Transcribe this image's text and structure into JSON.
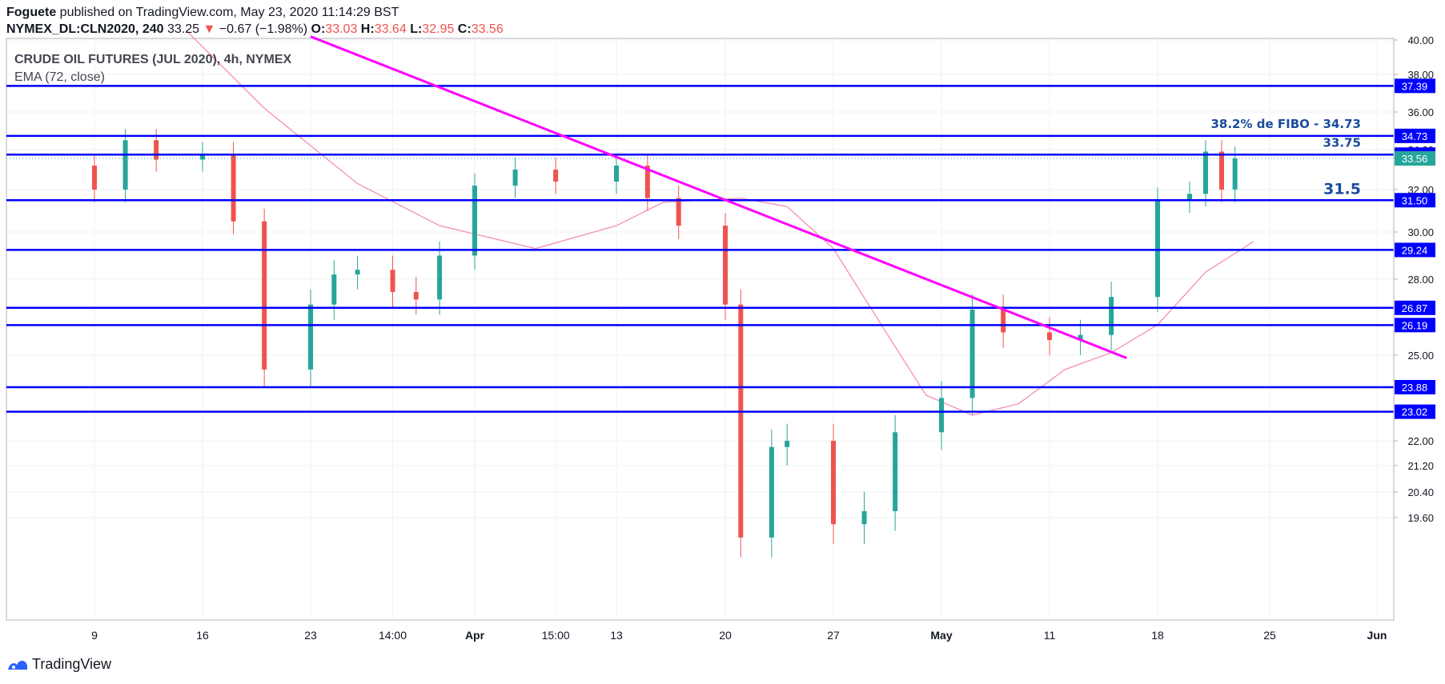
{
  "header": {
    "author": "Foguete",
    "published_text": "published on TradingView.com, May 23, 2020 11:14:29 BST",
    "symbol": "NYMEX_DL:CLN2020, 240",
    "last": "33.25",
    "change_arrow": "▼",
    "change": "−0.67 (−1.98%)",
    "o_label": "O:",
    "o_value": "33.03",
    "h_label": "H:",
    "h_value": "33.64",
    "l_label": "L:",
    "l_value": "32.95",
    "c_label": "C:",
    "c_value": "33.56"
  },
  "legend": {
    "title": "CRUDE OIL FUTURES (JUL 2020), 4h, NYMEX",
    "indicator": "EMA (72, close)"
  },
  "footer": {
    "brand": "TradingView"
  },
  "colors": {
    "level_line": "#0000ff",
    "trend_line": "#ff00ff",
    "ema_line": "#f48fb1",
    "up_candle": "#26a69a",
    "down_candle": "#ef5350",
    "price_badge": "#26a69a",
    "annotation": "#1a4b9c"
  },
  "chart_data": {
    "type": "candlestick",
    "title": "CRUDE OIL FUTURES (JUL 2020), 4h, NYMEX",
    "y_axis": {
      "ticks": [
        "40.00",
        "38.00",
        "36.00",
        "34.00",
        "32.00",
        "30.00",
        "28.00",
        "25.00",
        "22.00",
        "21.20",
        "20.40",
        "19.60"
      ],
      "tick_values": [
        40.0,
        38.0,
        36.0,
        34.0,
        32.0,
        30.0,
        28.0,
        25.0,
        22.0,
        21.2,
        20.4,
        19.6
      ]
    },
    "x_axis": {
      "labels": [
        "9",
        "16",
        "23",
        "14:00",
        "Apr",
        "15:00",
        "13",
        "20",
        "27",
        "May",
        "11",
        "18",
        "25",
        "Jun"
      ]
    },
    "horizontal_levels": [
      {
        "label": "37.39",
        "value": 37.39
      },
      {
        "label": "34.73",
        "value": 34.73
      },
      {
        "label": "33.75",
        "value": 33.75
      },
      {
        "label": "31.50",
        "value": 31.5
      },
      {
        "label": "29.24",
        "value": 29.24
      },
      {
        "label": "26.87",
        "value": 26.87
      },
      {
        "label": "26.19",
        "value": 26.19
      },
      {
        "label": "23.88",
        "value": 23.88
      },
      {
        "label": "23.02",
        "value": 23.02
      }
    ],
    "last_price": {
      "label": "33.56",
      "value": 33.56
    },
    "annotations": [
      {
        "text": "38.2% de FIBO - 34.73",
        "value": 34.73
      },
      {
        "text": "33.75",
        "value": 33.75
      },
      {
        "text": "31.5",
        "value": 31.5
      }
    ],
    "trendline": {
      "start": {
        "date": "Mar 23",
        "price": 40.2
      },
      "end": {
        "date": "May 16",
        "price": 24.9
      }
    },
    "ema_72": [
      {
        "date": "Mar 15",
        "price": 40.5
      },
      {
        "date": "Mar 20",
        "price": 36.2
      },
      {
        "date": "Mar 27",
        "price": 32.3
      },
      {
        "date": "Apr 3",
        "price": 30.3
      },
      {
        "date": "Apr 9",
        "price": 29.3
      },
      {
        "date": "Apr 13",
        "price": 30.3
      },
      {
        "date": "Apr 16",
        "price": 31.4
      },
      {
        "date": "Apr 21",
        "price": 31.6
      },
      {
        "date": "Apr 24",
        "price": 31.2
      },
      {
        "date": "Apr 27",
        "price": 29.3
      },
      {
        "date": "Apr 30",
        "price": 26.3
      },
      {
        "date": "May 3",
        "price": 23.6
      },
      {
        "date": "May 6",
        "price": 22.9
      },
      {
        "date": "May 9",
        "price": 23.3
      },
      {
        "date": "May 12",
        "price": 24.5
      },
      {
        "date": "May 15",
        "price": 25.1
      },
      {
        "date": "May 18",
        "price": 26.2
      },
      {
        "date": "May 21",
        "price": 28.3
      },
      {
        "date": "May 24",
        "price": 29.6
      }
    ],
    "candles_close": [
      {
        "date": "Mar 9",
        "close": 32.0
      },
      {
        "date": "Mar 11",
        "close": 34.5
      },
      {
        "date": "Mar 13",
        "close": 33.5
      },
      {
        "date": "Mar 16",
        "close": 33.8
      },
      {
        "date": "Mar 18",
        "close": 30.5
      },
      {
        "date": "Mar 20",
        "close": 24.5
      },
      {
        "date": "Mar 23",
        "close": 27.0
      },
      {
        "date": "Mar 25",
        "close": 28.2
      },
      {
        "date": "Mar 27",
        "close": 28.4
      },
      {
        "date": "Mar 30",
        "close": 27.5
      },
      {
        "date": "Apr 1",
        "close": 27.2
      },
      {
        "date": "Apr 3",
        "close": 29.0
      },
      {
        "date": "Apr 6",
        "close": 32.2
      },
      {
        "date": "Apr 8",
        "close": 33.0
      },
      {
        "date": "Apr 10",
        "close": 32.4
      },
      {
        "date": "Apr 13",
        "close": 33.2
      },
      {
        "date": "Apr 15",
        "close": 31.6
      },
      {
        "date": "Apr 17",
        "close": 30.3
      },
      {
        "date": "Apr 20",
        "close": 27.0
      },
      {
        "date": "Apr 21",
        "close": 19.0
      },
      {
        "date": "Apr 23",
        "close": 21.8
      },
      {
        "date": "Apr 24",
        "close": 22.0
      },
      {
        "date": "Apr 27",
        "close": 19.4
      },
      {
        "date": "Apr 29",
        "close": 19.8
      },
      {
        "date": "May 1",
        "close": 22.3
      },
      {
        "date": "May 4",
        "close": 23.5
      },
      {
        "date": "May 6",
        "close": 26.8
      },
      {
        "date": "May 8",
        "close": 25.9
      },
      {
        "date": "May 11",
        "close": 25.6
      },
      {
        "date": "May 13",
        "close": 25.8
      },
      {
        "date": "May 15",
        "close": 27.3
      },
      {
        "date": "May 18",
        "close": 31.5
      },
      {
        "date": "May 20",
        "close": 31.8
      },
      {
        "date": "May 21",
        "close": 33.9
      },
      {
        "date": "May 22",
        "close": 32.0
      },
      {
        "date": "May 22 20:00",
        "close": 33.56
      }
    ]
  }
}
